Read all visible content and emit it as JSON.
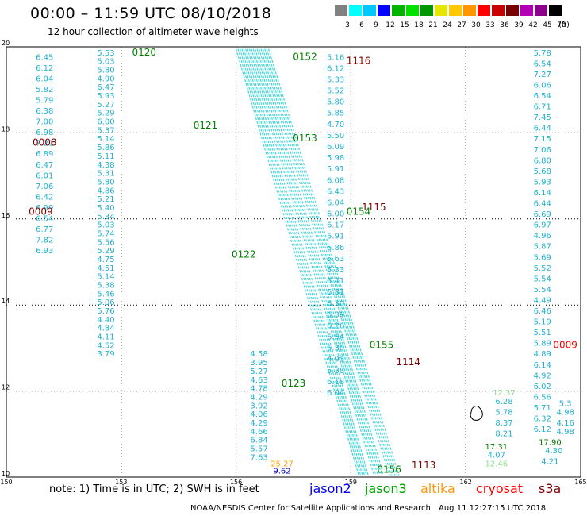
{
  "header": {
    "title": "00:00 – 11:59 UTC 08/10/2018",
    "subtitle": "12 hour collection of altimeter wave heights"
  },
  "scale": {
    "unit": "(ft)",
    "colors": [
      "#808080",
      "#00ffff",
      "#00c8ff",
      "#0000ff",
      "#00b400",
      "#00e100",
      "#009600",
      "#e6e600",
      "#ffc800",
      "#ff9600",
      "#ff0000",
      "#c80000",
      "#780000",
      "#b400b4",
      "#8c008c",
      "#000000"
    ],
    "labels": [
      "3",
      "6",
      "9",
      "12",
      "15",
      "18",
      "21",
      "24",
      "27",
      "30",
      "33",
      "36",
      "39",
      "42",
      "45",
      "70"
    ]
  },
  "map": {
    "lon_ticks": [
      "150",
      "153",
      "156",
      "159",
      "162",
      "165"
    ],
    "lat_ticks": [
      "20",
      "18",
      "16",
      "14",
      "12",
      "10"
    ],
    "lon_range": [
      150,
      165
    ],
    "lat_range": [
      10,
      20
    ],
    "track_times": [
      {
        "t": "0120",
        "lon": 153.6,
        "lat": 19.8,
        "c": "#008000"
      },
      {
        "t": "0121",
        "lon": 155.2,
        "lat": 18.1,
        "c": "#008000"
      },
      {
        "t": "0122",
        "lon": 156.2,
        "lat": 15.1,
        "c": "#008000"
      },
      {
        "t": "0123",
        "lon": 157.5,
        "lat": 12.1,
        "c": "#008000"
      },
      {
        "t": "0152",
        "lon": 157.8,
        "lat": 19.7,
        "c": "#008000"
      },
      {
        "t": "0153",
        "lon": 157.8,
        "lat": 17.8,
        "c": "#008000"
      },
      {
        "t": "0154",
        "lon": 159.2,
        "lat": 16.1,
        "c": "#008000"
      },
      {
        "t": "0155",
        "lon": 159.8,
        "lat": 13.0,
        "c": "#008000"
      },
      {
        "t": "0156",
        "lon": 160.0,
        "lat": 10.1,
        "c": "#008000"
      },
      {
        "t": "0008",
        "lon": 151.0,
        "lat": 17.7,
        "c": "#800000"
      },
      {
        "t": "0009",
        "lon": 150.9,
        "lat": 16.1,
        "c": "#800000"
      },
      {
        "t": "1116",
        "lon": 159.2,
        "lat": 19.6,
        "c": "#800000"
      },
      {
        "t": "1115",
        "lon": 159.6,
        "lat": 16.2,
        "c": "#800000"
      },
      {
        "t": "1114",
        "lon": 160.5,
        "lat": 12.6,
        "c": "#800000"
      },
      {
        "t": "1113",
        "lon": 160.9,
        "lat": 10.2,
        "c": "#800000"
      },
      {
        "t": "0009",
        "lon": 164.6,
        "lat": 13.0,
        "c": "#ff0000"
      }
    ],
    "columns": [
      {
        "lon": 151.0,
        "lat_start": 19.7,
        "step": 0.25,
        "color": "#20b0d0",
        "values": [
          "6.45",
          "6.12",
          "6.04",
          "5.82",
          "5.79",
          "6.38",
          "7.00",
          "6.98",
          "7.21",
          "6.89",
          "6.47",
          "6.01",
          "7.06",
          "6.42",
          "6.99",
          "6.54",
          "6.77",
          "7.82",
          "6.93"
        ]
      },
      {
        "lon": 152.6,
        "lat_start": 19.8,
        "step": 0.2,
        "color": "#20b0d0",
        "values": [
          "5.53",
          "5.03",
          "5.80",
          "4.90",
          "6.47",
          "5.93",
          "5.27",
          "5.29",
          "6.00",
          "5.37",
          "5.14",
          "5.86",
          "5.11",
          "4.38",
          "5.31",
          "5.80",
          "4.86",
          "5.21",
          "5.40",
          "5.34",
          "5.03",
          "5.74",
          "5.56",
          "5.29",
          "4.75",
          "4.51",
          "5.14",
          "5.38",
          "5.46",
          "5.06",
          "5.76",
          "4.40",
          "4.84",
          "4.11",
          "4.52",
          "3.79"
        ]
      },
      {
        "lon": 156.6,
        "lat_start": 12.8,
        "step": 0.2,
        "color": "#20b0d0",
        "values": [
          "4.58",
          "3.95",
          "5.27",
          "4.63",
          "4.78",
          "4.29",
          "3.92",
          "4.06",
          "4.29",
          "4.66",
          "6.84",
          "5.57",
          "7.63"
        ]
      },
      {
        "lon": 158.6,
        "lat_start": 19.7,
        "step": 0.26,
        "color": "#20b0d0",
        "values": [
          "5.16",
          "6.12",
          "5.33",
          "5.52",
          "5.80",
          "5.85",
          "4.70",
          "5.50",
          "6.09",
          "5.98",
          "5.91",
          "6.08",
          "6.43",
          "6.04",
          "6.00",
          "6.17",
          "5.91",
          "5.86",
          "5.63",
          "5.33",
          "6.41",
          "6.31",
          "6.30",
          "6.39",
          "6.26",
          "6.54",
          "5.30",
          "4.93",
          "5.38",
          "6.18",
          "6.04"
        ]
      },
      {
        "lon": 164.0,
        "lat_start": 19.8,
        "step": 0.25,
        "color": "#20b0d0",
        "values": [
          "5.78",
          "6.54",
          "7.27",
          "6.06",
          "6.54",
          "6.71",
          "7.45",
          "6.44",
          "7.15",
          "7.06",
          "6.80",
          "5.68",
          "5.93",
          "6.14",
          "6.44",
          "6.69",
          "6.97",
          "4.96",
          "5.87",
          "5.69",
          "5.52",
          "5.54",
          "5.54",
          "4.49",
          "6.46",
          "5.19",
          "5.51",
          "5.89",
          "4.89",
          "6.14",
          "4.92",
          "6.02",
          "6.56",
          "5.71",
          "6.32",
          "6.12"
        ]
      },
      {
        "lon": 163.0,
        "lat_start": 11.7,
        "step": 0.25,
        "color": "#20b0d0",
        "values": [
          "6.28",
          "5.78",
          "8.37",
          "8.21"
        ]
      }
    ],
    "special": [
      {
        "v": "25.27",
        "lon": 157.2,
        "lat": 10.25,
        "c": "#ffa500"
      },
      {
        "v": "9.62",
        "lon": 157.2,
        "lat": 10.08,
        "c": "#0000c0"
      },
      {
        "v": "12.37",
        "lon": 163.0,
        "lat": 11.9,
        "c": "#90e090"
      },
      {
        "v": "17.31",
        "lon": 162.8,
        "lat": 10.65,
        "c": "#008000"
      },
      {
        "v": "4.07",
        "lon": 162.8,
        "lat": 10.45,
        "c": "#20b0d0"
      },
      {
        "v": "12.46",
        "lon": 162.8,
        "lat": 10.25,
        "c": "#90e090"
      },
      {
        "v": "17.90",
        "lon": 164.2,
        "lat": 10.75,
        "c": "#008000"
      },
      {
        "v": "4.30",
        "lon": 164.3,
        "lat": 10.55,
        "c": "#20b0d0"
      },
      {
        "v": "4.21",
        "lon": 164.2,
        "lat": 10.3,
        "c": "#20b0d0"
      },
      {
        "v": "4.98",
        "lon": 164.6,
        "lat": 11.0,
        "c": "#20b0d0"
      },
      {
        "v": "4.16",
        "lon": 164.6,
        "lat": 11.2,
        "c": "#20b0d0"
      },
      {
        "v": "4.98",
        "lon": 164.6,
        "lat": 11.45,
        "c": "#20b0d0"
      },
      {
        "v": "5.3",
        "lon": 164.6,
        "lat": 11.65,
        "c": "#20b0d0"
      }
    ]
  },
  "footer": {
    "note": "note: 1) Time is in UTC; 2) SWH is in feet",
    "legend": [
      {
        "name": "jason2",
        "color": "#0000ff"
      },
      {
        "name": "jason3",
        "color": "#00a000"
      },
      {
        "name": "altika",
        "color": "#ff9900"
      },
      {
        "name": "cryosat",
        "color": "#ff0000"
      },
      {
        "name": "s3a",
        "color": "#800000"
      }
    ],
    "credit": "NOAA/NESDIS Center for Satellite Applications and Research",
    "timestamp": "Aug 11 12:27:15 UTC 2018"
  }
}
